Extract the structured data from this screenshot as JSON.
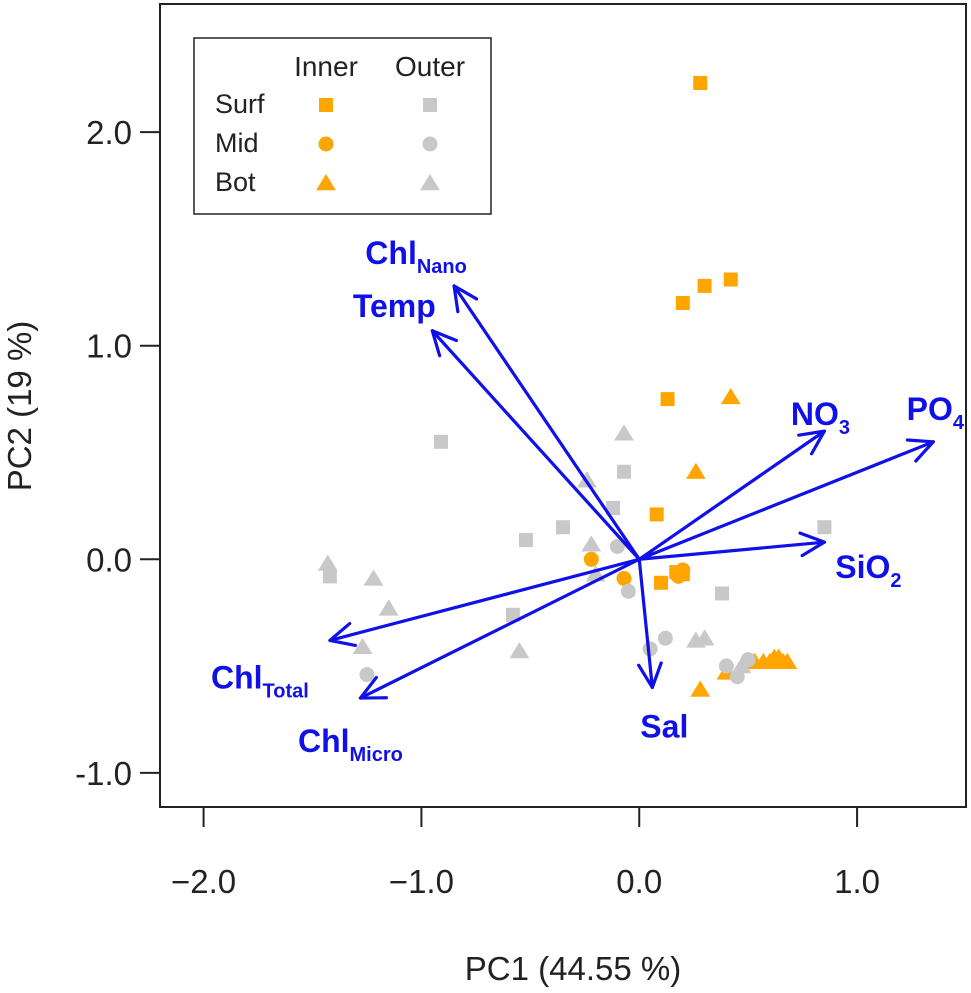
{
  "chart_data": {
    "type": "scatter",
    "subtype": "pca-biplot",
    "xlabel": "PC1 (44.55 %)",
    "ylabel": "PC2 (19 %)",
    "xlim": [
      -2.2,
      1.5
    ],
    "ylim": [
      -1.16,
      2.6
    ],
    "xticks": [
      -2.0,
      -1.0,
      0.0,
      1.0
    ],
    "xtick_labels": [
      "−2.0",
      "−1.0",
      "0.0",
      "1.0"
    ],
    "yticks": [
      -1.0,
      0.0,
      1.0,
      2.0
    ],
    "ytick_labels": [
      "-1.0",
      "0.0",
      "1.0",
      "2.0"
    ],
    "colors": {
      "inner": "#FFA500",
      "outer": "#C8C8C8",
      "vector": "#1010E8",
      "axis": "#222222"
    },
    "legend": {
      "position": "top-left",
      "columns": [
        "Inner",
        "Outer"
      ],
      "rows": [
        {
          "label": "Surf",
          "shape": "square"
        },
        {
          "label": "Mid",
          "shape": "circle"
        },
        {
          "label": "Bot",
          "shape": "triangle"
        }
      ]
    },
    "vectors": [
      {
        "name": "Chl_Nano",
        "label": "Chl",
        "sub": "Nano",
        "x": -0.85,
        "y": 1.28
      },
      {
        "name": "Temp",
        "label": "Temp",
        "sub": "",
        "x": -0.95,
        "y": 1.07
      },
      {
        "name": "NO3",
        "label": "NO",
        "sub": "3",
        "x": 0.85,
        "y": 0.6
      },
      {
        "name": "PO4",
        "label": "PO",
        "sub": "4",
        "x": 1.35,
        "y": 0.55
      },
      {
        "name": "SiO2",
        "label": "SiO",
        "sub": "2",
        "x": 0.85,
        "y": 0.08
      },
      {
        "name": "Sal",
        "label": "Sal",
        "sub": "",
        "x": 0.06,
        "y": -0.6
      },
      {
        "name": "Chl_Total",
        "label": "Chl",
        "sub": "Total",
        "x": -1.42,
        "y": -0.38
      },
      {
        "name": "Chl_Micro",
        "label": "Chl",
        "sub": "Micro",
        "x": -1.28,
        "y": -0.65
      }
    ],
    "series": [
      {
        "name": "Inner Surf",
        "group": "inner",
        "shape": "square",
        "x": [
          0.28,
          0.42,
          0.3,
          0.2,
          0.13,
          0.08,
          0.1,
          0.17,
          0.2
        ],
        "y": [
          2.23,
          1.31,
          1.28,
          1.2,
          0.75,
          0.21,
          -0.11,
          -0.06,
          -0.07
        ]
      },
      {
        "name": "Inner Mid",
        "group": "inner",
        "shape": "circle",
        "x": [
          -0.22,
          -0.07,
          0.18,
          0.2
        ],
        "y": [
          0.0,
          -0.09,
          -0.08,
          -0.05
        ]
      },
      {
        "name": "Inner Bot",
        "group": "inner",
        "shape": "triangle",
        "x": [
          0.42,
          0.26,
          0.28,
          0.4,
          0.53,
          0.57,
          0.6,
          0.62,
          0.64,
          0.66,
          0.68
        ],
        "y": [
          0.76,
          0.41,
          -0.61,
          -0.53,
          -0.48,
          -0.48,
          -0.48,
          -0.46,
          -0.46,
          -0.48,
          -0.48
        ]
      },
      {
        "name": "Outer Surf",
        "group": "outer",
        "shape": "square",
        "x": [
          -0.91,
          -0.07,
          -0.12,
          -0.35,
          -0.52,
          -0.58,
          -1.42,
          0.38,
          0.85
        ],
        "y": [
          0.55,
          0.41,
          0.24,
          0.15,
          0.09,
          -0.26,
          -0.08,
          -0.16,
          0.15
        ]
      },
      {
        "name": "Outer Mid",
        "group": "outer",
        "shape": "circle",
        "x": [
          -0.1,
          -0.05,
          0.12,
          0.5,
          0.4,
          0.05,
          0.45,
          -1.25
        ],
        "y": [
          0.06,
          -0.15,
          -0.37,
          -0.47,
          -0.5,
          -0.42,
          -0.55,
          -0.54
        ]
      },
      {
        "name": "Outer Bot",
        "group": "outer",
        "shape": "triangle",
        "x": [
          -0.07,
          -0.24,
          -0.22,
          -1.43,
          -1.22,
          -1.15,
          -0.55,
          -0.2,
          0.26,
          0.3,
          0.47,
          -1.27
        ],
        "y": [
          0.59,
          0.37,
          0.07,
          -0.02,
          -0.09,
          -0.23,
          -0.43,
          -0.07,
          -0.38,
          -0.37,
          -0.5,
          -0.41
        ]
      }
    ]
  }
}
